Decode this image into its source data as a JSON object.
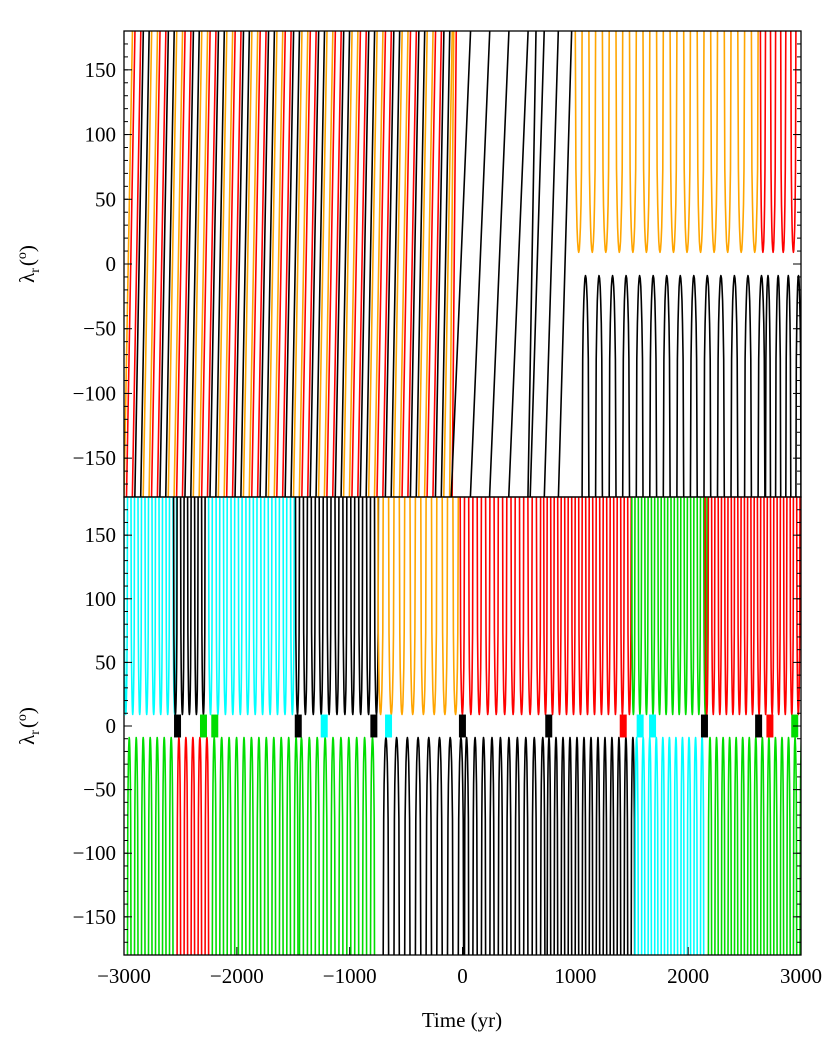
{
  "chart_data": [
    {
      "type": "line",
      "panel": "top",
      "ylabel_symbol": "λ",
      "ylabel_sub": "r",
      "ylabel_unit_open": "(",
      "ylabel_unit": "o",
      "ylabel_unit_close": ")",
      "xlim": [
        -3000,
        3000
      ],
      "ylim": [
        -180,
        180
      ],
      "yticks": [
        -150,
        -100,
        -50,
        0,
        50,
        100,
        150
      ],
      "ytick_labels": [
        "−150",
        "−100",
        "−50",
        "0",
        "50",
        "100",
        "150"
      ],
      "series_colors": {
        "black": "#000000",
        "red": "#ff0000",
        "orange": "#ffa500"
      },
      "circulation_segments": [
        {
          "from": -3000,
          "to": -100,
          "period": 74,
          "drift_deg_per_yr": 4.8,
          "colors": [
            "#ffa500",
            "#ff0000",
            "#000000"
          ]
        },
        {
          "from": -100,
          "to": 600,
          "period": 170,
          "drift_deg_per_yr": 2.1,
          "colors": [
            "#000000"
          ]
        },
        {
          "from": 600,
          "to": 930,
          "period": 125,
          "drift_deg_per_yr": 2.9,
          "colors": [
            "#000000"
          ]
        }
      ],
      "libration_segments": [
        {
          "from": 1000,
          "to": 2640,
          "color": "#ffa500",
          "partner": "#000000",
          "period": 120,
          "center": 0,
          "gap": 9
        },
        {
          "from": 2640,
          "to": 3000,
          "color": "#ff0000",
          "partner": "#000000",
          "period": 90,
          "center": 0,
          "gap": 9
        }
      ]
    },
    {
      "type": "line",
      "panel": "bottom",
      "xlabel": "Time (yr)",
      "ylabel_symbol": "λ",
      "ylabel_sub": "r",
      "ylabel_unit_open": "(",
      "ylabel_unit": "o",
      "ylabel_unit_close": ")",
      "xlim": [
        -3000,
        3000
      ],
      "ylim": [
        -180,
        180
      ],
      "xticks": [
        -3000,
        -2000,
        -1000,
        0,
        1000,
        2000,
        3000
      ],
      "xtick_labels": [
        "−3000",
        "−2000",
        "−1000",
        "0",
        "1000",
        "2000",
        "3000"
      ],
      "yticks": [
        -150,
        -100,
        -50,
        0,
        50,
        100,
        150
      ],
      "ytick_labels": [
        "−150",
        "−100",
        "−50",
        "0",
        "50",
        "100",
        "150"
      ],
      "series_colors": {
        "black": "#000000",
        "red": "#ff0000",
        "orange": "#ffa500",
        "cyan": "#00ffff",
        "green": "#00dd00"
      },
      "libration_segments": [
        {
          "from": -3000,
          "to": -2560,
          "color": "#00ffff",
          "partner": "#00dd00",
          "period": 62,
          "center": 0,
          "gap": 9
        },
        {
          "from": -2560,
          "to": -2250,
          "color": "#000000",
          "partner": "#ff0000",
          "period": 62,
          "center": 0,
          "gap": 9
        },
        {
          "from": -2250,
          "to": -1480,
          "color": "#00ffff",
          "partner": "#00dd00",
          "period": 66,
          "center": 0,
          "gap": 9
        },
        {
          "from": -1480,
          "to": -750,
          "color": "#000000",
          "partner": "#00dd00",
          "period": 70,
          "center": 0,
          "gap": 9
        },
        {
          "from": -750,
          "to": -20,
          "color": "#ffa500",
          "partner": "#000000",
          "period": 95,
          "center": 0,
          "gap": 9
        },
        {
          "from": -20,
          "to": 720,
          "color": "#ff0000",
          "partner": "#000000",
          "period": 75,
          "center": 0,
          "gap": 9
        },
        {
          "from": 720,
          "to": 1500,
          "color": "#ff0000",
          "partner": "#000000",
          "period": 62,
          "center": 0,
          "gap": 9
        },
        {
          "from": 1500,
          "to": 2150,
          "color": "#00dd00",
          "partner": "#00ffff",
          "period": 58,
          "center": 0,
          "gap": 9
        },
        {
          "from": 2150,
          "to": 3000,
          "color": "#ff0000",
          "partner": "#00dd00",
          "period": 58,
          "center": 0,
          "gap": 9
        }
      ],
      "markers": [
        {
          "t": -2530,
          "color": "#000000"
        },
        {
          "t": -2300,
          "color": "#00dd00"
        },
        {
          "t": -2200,
          "color": "#00dd00"
        },
        {
          "t": -1460,
          "color": "#000000"
        },
        {
          "t": -1230,
          "color": "#00ffff"
        },
        {
          "t": -790,
          "color": "#000000"
        },
        {
          "t": -660,
          "color": "#00ffff"
        },
        {
          "t": -5,
          "color": "#000000"
        },
        {
          "t": 760,
          "color": "#000000"
        },
        {
          "t": 1420,
          "color": "#ff0000"
        },
        {
          "t": 1570,
          "color": "#00ffff"
        },
        {
          "t": 1680,
          "color": "#00ffff"
        },
        {
          "t": 2140,
          "color": "#000000"
        },
        {
          "t": 2620,
          "color": "#000000"
        },
        {
          "t": 2720,
          "color": "#ff0000"
        },
        {
          "t": 2940,
          "color": "#00dd00"
        }
      ]
    }
  ]
}
